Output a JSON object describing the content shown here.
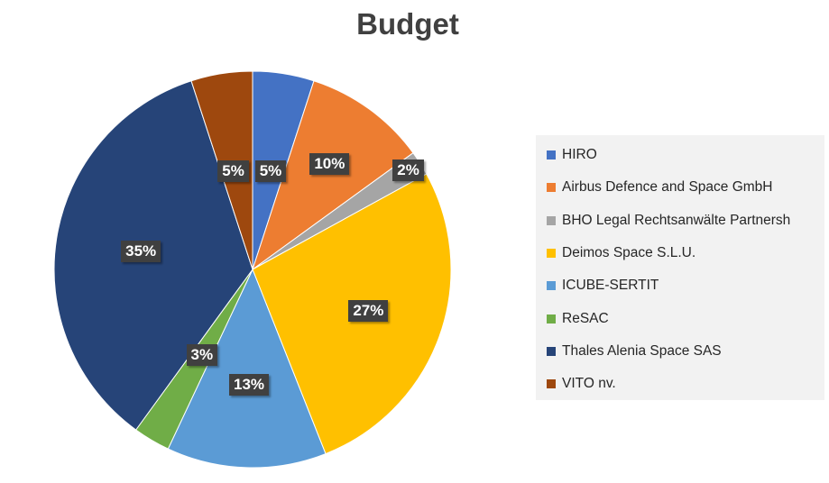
{
  "chart_data": {
    "type": "pie",
    "title": "Budget",
    "start_angle_deg": 0,
    "direction": "clockwise",
    "legend_position": "right",
    "slices": [
      {
        "label": "HIRO",
        "value": 5,
        "data_label": "5%",
        "color": "#4472C4"
      },
      {
        "label": "Airbus Defence and Space GmbH",
        "value": 10,
        "data_label": "10%",
        "color": "#ED7D31"
      },
      {
        "label": "BHO Legal Rechtsanwälte Partnersh",
        "value": 2,
        "data_label": "2%",
        "color": "#A5A5A5"
      },
      {
        "label": "Deimos Space S.L.U.",
        "value": 27,
        "data_label": "27%",
        "color": "#FFC000"
      },
      {
        "label": "ICUBE-SERTIT",
        "value": 13,
        "data_label": "13%",
        "color": "#5B9BD5"
      },
      {
        "label": "ReSAC",
        "value": 3,
        "data_label": "3%",
        "color": "#70AD47"
      },
      {
        "label": "Thales Alenia Space SAS",
        "value": 35,
        "data_label": "35%",
        "color": "#264478"
      },
      {
        "label": "VITO nv.",
        "value": 5,
        "data_label": "5%",
        "color": "#9E480E"
      }
    ]
  }
}
